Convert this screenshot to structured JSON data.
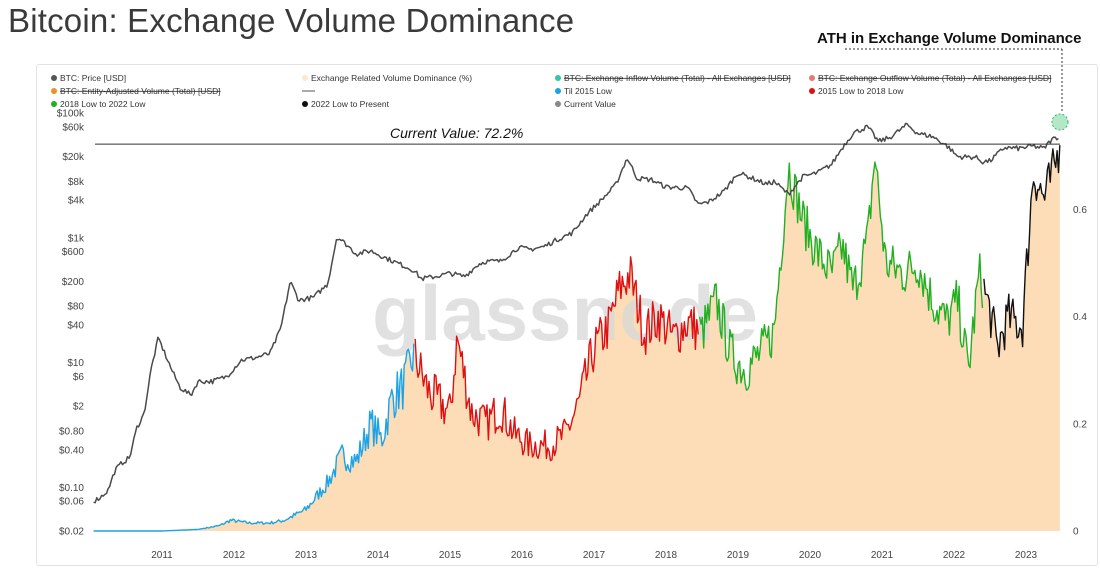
{
  "title": "Bitcoin: Exchange Volume Dominance",
  "callout": "ATH in Exchange Volume Dominance",
  "watermark": "glassnode",
  "colors": {
    "price": "#4a4a4a",
    "area": "#fcd9b0",
    "til2015": "#1aa3e8",
    "low2015to2018": "#e01010",
    "low2018to2022": "#22b022",
    "low2022toPresent": "#111111",
    "current": "#7fd8a0"
  },
  "legend": [
    {
      "label": "BTC: Price [USD]",
      "color": "#555555",
      "struck": false
    },
    {
      "label": "Exchange Related Volume Dominance (%)",
      "color": "#fbe7cf",
      "struck": false
    },
    {
      "label": "BTC: Exchange Inflow Volume (Total) - All Exchanges [USD]",
      "color": "#2ec9a0",
      "struck": true
    },
    {
      "label": "BTC: Exchange Outflow Volume (Total) - All Exchanges [USD]",
      "color": "#e87878",
      "struck": true
    },
    {
      "label": "BTC: Entity-Adjusted Volume (Total) [USD]",
      "color": "#f0902a",
      "struck": true
    },
    {
      "label": "",
      "color": "#555555",
      "struck": false,
      "line": true
    },
    {
      "label": "Til 2015 Low",
      "color": "#1aa3e8",
      "struck": false
    },
    {
      "label": "2015 Low to 2018 Low",
      "color": "#e01010",
      "struck": false
    },
    {
      "label": "2018 Low to 2022 Low",
      "color": "#22b022",
      "struck": false
    },
    {
      "label": "2022 Low to Present",
      "color": "#111111",
      "struck": false
    },
    {
      "label": "Current Value",
      "color": "#888888",
      "struck": false
    }
  ],
  "chart_data": {
    "type": "line",
    "current_value_label": "Current Value: 72.2%",
    "current_value": 0.722,
    "x_ticks": [
      "2011",
      "2012",
      "2013",
      "2014",
      "2015",
      "2016",
      "2017",
      "2018",
      "2019",
      "2020",
      "2021",
      "2022",
      "2023"
    ],
    "xlim": [
      2010.5,
      2024.0
    ],
    "y_left": {
      "label": "BTC: Price [USD]",
      "scale": "log",
      "ticks": [
        {
          "v": 100000,
          "t": "$100k"
        },
        {
          "v": 60000,
          "t": "$60k"
        },
        {
          "v": 20000,
          "t": "$20k"
        },
        {
          "v": 8000,
          "t": "$8k"
        },
        {
          "v": 4000,
          "t": "$4k"
        },
        {
          "v": 1000,
          "t": "$1k"
        },
        {
          "v": 600,
          "t": "$600"
        },
        {
          "v": 200,
          "t": "$200"
        },
        {
          "v": 80,
          "t": "$80"
        },
        {
          "v": 40,
          "t": "$40"
        },
        {
          "v": 10,
          "t": "$10"
        },
        {
          "v": 6,
          "t": "$6"
        },
        {
          "v": 2,
          "t": "$2"
        },
        {
          "v": 0.8,
          "t": "$0.80"
        },
        {
          "v": 0.4,
          "t": "$0.40"
        },
        {
          "v": 0.1,
          "t": "$0.10"
        },
        {
          "v": 0.06,
          "t": "$0.06"
        },
        {
          "v": 0.02,
          "t": "$0.02"
        }
      ]
    },
    "y_right": {
      "label": "Exchange Related Volume Dominance (%)",
      "ticks": [
        {
          "v": 0.6,
          "t": "0.6"
        },
        {
          "v": 0.4,
          "t": "0.4"
        },
        {
          "v": 0.2,
          "t": "0.2"
        },
        {
          "v": 0,
          "t": "0"
        }
      ],
      "ylim": [
        0,
        0.78
      ]
    },
    "price_series": {
      "name": "BTC: Price [USD]",
      "points": [
        [
          2010.55,
          0.06
        ],
        [
          2010.65,
          0.07
        ],
        [
          2010.75,
          0.09
        ],
        [
          2010.85,
          0.19
        ],
        [
          2010.95,
          0.25
        ],
        [
          2011.05,
          0.3
        ],
        [
          2011.15,
          0.9
        ],
        [
          2011.25,
          1.5
        ],
        [
          2011.35,
          8
        ],
        [
          2011.45,
          25
        ],
        [
          2011.55,
          13
        ],
        [
          2011.65,
          7
        ],
        [
          2011.75,
          4
        ],
        [
          2011.9,
          3
        ],
        [
          2012.0,
          5
        ],
        [
          2012.2,
          5
        ],
        [
          2012.4,
          6
        ],
        [
          2012.6,
          11
        ],
        [
          2012.8,
          12
        ],
        [
          2013.0,
          14
        ],
        [
          2013.15,
          35
        ],
        [
          2013.28,
          200
        ],
        [
          2013.4,
          100
        ],
        [
          2013.6,
          110
        ],
        [
          2013.8,
          180
        ],
        [
          2013.93,
          1050
        ],
        [
          2014.05,
          800
        ],
        [
          2014.2,
          550
        ],
        [
          2014.4,
          620
        ],
        [
          2014.6,
          480
        ],
        [
          2014.8,
          380
        ],
        [
          2015.0,
          300
        ],
        [
          2015.1,
          220
        ],
        [
          2015.3,
          240
        ],
        [
          2015.5,
          270
        ],
        [
          2015.7,
          240
        ],
        [
          2015.9,
          380
        ],
        [
          2016.0,
          420
        ],
        [
          2016.2,
          420
        ],
        [
          2016.45,
          700
        ],
        [
          2016.6,
          650
        ],
        [
          2016.8,
          720
        ],
        [
          2017.0,
          950
        ],
        [
          2017.2,
          1200
        ],
        [
          2017.4,
          2400
        ],
        [
          2017.6,
          4000
        ],
        [
          2017.8,
          7000
        ],
        [
          2017.96,
          19000
        ],
        [
          2018.1,
          9000
        ],
        [
          2018.3,
          8500
        ],
        [
          2018.5,
          6500
        ],
        [
          2018.8,
          6300
        ],
        [
          2018.95,
          3400
        ],
        [
          2019.1,
          3800
        ],
        [
          2019.3,
          5500
        ],
        [
          2019.5,
          11000
        ],
        [
          2019.7,
          9000
        ],
        [
          2019.9,
          7200
        ],
        [
          2020.0,
          8000
        ],
        [
          2020.2,
          5000
        ],
        [
          2020.4,
          9500
        ],
        [
          2020.6,
          11000
        ],
        [
          2020.8,
          15000
        ],
        [
          2020.95,
          28000
        ],
        [
          2021.1,
          48000
        ],
        [
          2021.3,
          60000
        ],
        [
          2021.45,
          35000
        ],
        [
          2021.6,
          40000
        ],
        [
          2021.85,
          65000
        ],
        [
          2022.0,
          47000
        ],
        [
          2022.2,
          42000
        ],
        [
          2022.4,
          30000
        ],
        [
          2022.55,
          20000
        ],
        [
          2022.8,
          19500
        ],
        [
          2022.9,
          16500
        ],
        [
          2023.0,
          17000
        ],
        [
          2023.2,
          28000
        ],
        [
          2023.4,
          27000
        ],
        [
          2023.6,
          29500
        ],
        [
          2023.75,
          27000
        ],
        [
          2023.85,
          37000
        ],
        [
          2023.95,
          42000
        ]
      ]
    },
    "dominance_points": [
      [
        2010.55,
        0.0
      ],
      [
        2011.5,
        0.0
      ],
      [
        2012.0,
        0.003
      ],
      [
        2012.3,
        0.01
      ],
      [
        2012.45,
        0.02
      ],
      [
        2012.7,
        0.015
      ],
      [
        2013.0,
        0.015
      ],
      [
        2013.2,
        0.02
      ],
      [
        2013.5,
        0.04
      ],
      [
        2013.8,
        0.09
      ],
      [
        2014.0,
        0.14
      ],
      [
        2014.2,
        0.13
      ],
      [
        2014.4,
        0.2
      ],
      [
        2014.55,
        0.17
      ],
      [
        2014.7,
        0.25
      ],
      [
        2014.85,
        0.27
      ],
      [
        2015.0,
        0.33
      ],
      [
        2015.2,
        0.26
      ],
      [
        2015.5,
        0.22
      ],
      [
        2015.6,
        0.36
      ],
      [
        2015.8,
        0.22
      ],
      [
        2016.0,
        0.2
      ],
      [
        2016.2,
        0.23
      ],
      [
        2016.4,
        0.18
      ],
      [
        2016.6,
        0.16
      ],
      [
        2016.9,
        0.16
      ],
      [
        2017.1,
        0.18
      ],
      [
        2017.3,
        0.24
      ],
      [
        2017.5,
        0.34
      ],
      [
        2017.7,
        0.38
      ],
      [
        2017.85,
        0.45
      ],
      [
        2018.0,
        0.48
      ],
      [
        2018.2,
        0.37
      ],
      [
        2018.4,
        0.4
      ],
      [
        2018.6,
        0.36
      ],
      [
        2018.8,
        0.39
      ],
      [
        2019.0,
        0.37
      ],
      [
        2019.2,
        0.43
      ],
      [
        2019.4,
        0.33
      ],
      [
        2019.6,
        0.3
      ],
      [
        2019.8,
        0.33
      ],
      [
        2020.0,
        0.37
      ],
      [
        2020.2,
        0.68
      ],
      [
        2020.4,
        0.58
      ],
      [
        2020.6,
        0.52
      ],
      [
        2020.8,
        0.48
      ],
      [
        2020.95,
        0.53
      ],
      [
        2021.1,
        0.45
      ],
      [
        2021.3,
        0.54
      ],
      [
        2021.4,
        0.7
      ],
      [
        2021.55,
        0.5
      ],
      [
        2021.8,
        0.48
      ],
      [
        2022.0,
        0.5
      ],
      [
        2022.2,
        0.43
      ],
      [
        2022.4,
        0.39
      ],
      [
        2022.55,
        0.43
      ],
      [
        2022.7,
        0.3
      ],
      [
        2022.85,
        0.48
      ],
      [
        2023.0,
        0.41
      ],
      [
        2023.1,
        0.34
      ],
      [
        2023.25,
        0.4
      ],
      [
        2023.45,
        0.38
      ],
      [
        2023.6,
        0.67
      ],
      [
        2023.75,
        0.62
      ],
      [
        2023.9,
        0.68
      ],
      [
        2023.97,
        0.72
      ]
    ],
    "segments": [
      {
        "name": "Til 2015 Low",
        "from": 2010.55,
        "to": 2015.0,
        "colorKey": "til2015"
      },
      {
        "name": "2015 Low to 2018 Low",
        "from": 2015.0,
        "to": 2018.95,
        "colorKey": "low2015to2018"
      },
      {
        "name": "2018 Low to 2022 Low",
        "from": 2018.95,
        "to": 2022.9,
        "colorKey": "low2018to2022"
      },
      {
        "name": "2022 Low to Present",
        "from": 2022.9,
        "to": 2024.0,
        "colorKey": "low2022toPresent"
      }
    ]
  }
}
